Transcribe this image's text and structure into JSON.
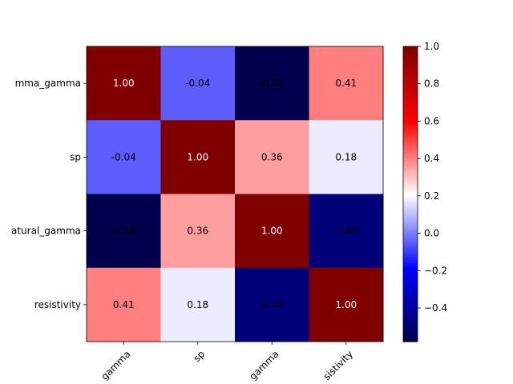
{
  "chart_data": {
    "type": "heatmap",
    "title": "",
    "xlabel": "",
    "ylabel": "",
    "x_tick_labels": [
      "gamma",
      "sp",
      "gamma",
      "sistivity"
    ],
    "y_tick_labels": [
      "mma_gamma",
      "sp",
      "atural_gamma",
      "resistivity"
    ],
    "values": [
      [
        1.0,
        -0.04,
        -0.58,
        0.41
      ],
      [
        -0.04,
        1.0,
        0.36,
        0.18
      ],
      [
        -0.58,
        0.36,
        1.0,
        -0.48
      ],
      [
        0.41,
        0.18,
        -0.48,
        1.0
      ]
    ],
    "cell_labels": [
      [
        "1.00",
        "-0.04",
        "-0.58",
        "0.41"
      ],
      [
        "-0.04",
        "1.00",
        "0.36",
        "0.18"
      ],
      [
        "-0.58",
        "0.36",
        "1.00",
        "-0.48"
      ],
      [
        "0.41",
        "0.18",
        "-0.48",
        "1.00"
      ]
    ],
    "colormap": "seismic",
    "vmin": -0.58,
    "vmax": 1.0,
    "colorbar": {
      "ticks": [
        -0.4,
        -0.2,
        0.0,
        0.2,
        0.4,
        0.6,
        0.8,
        1.0
      ],
      "tick_labels": [
        "−0.4",
        "−0.2",
        "0.0",
        "0.2",
        "0.4",
        "0.6",
        "0.8",
        "1.0"
      ]
    },
    "grid": false
  }
}
